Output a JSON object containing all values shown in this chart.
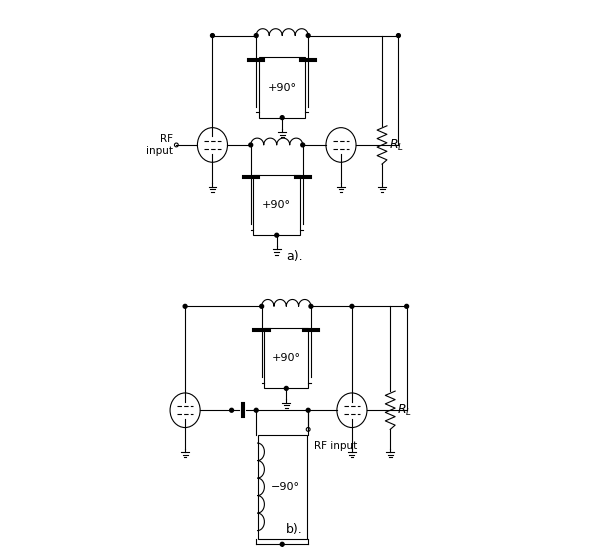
{
  "bg_color": "#ffffff",
  "label_a": "a).",
  "label_b": "b).",
  "rf_input_label": "RF\ninput",
  "rf_input_label_b": "RF input",
  "rl_label": "$R_L$",
  "phase_90_label": "+90°",
  "phase_neg90_label": "−90°"
}
